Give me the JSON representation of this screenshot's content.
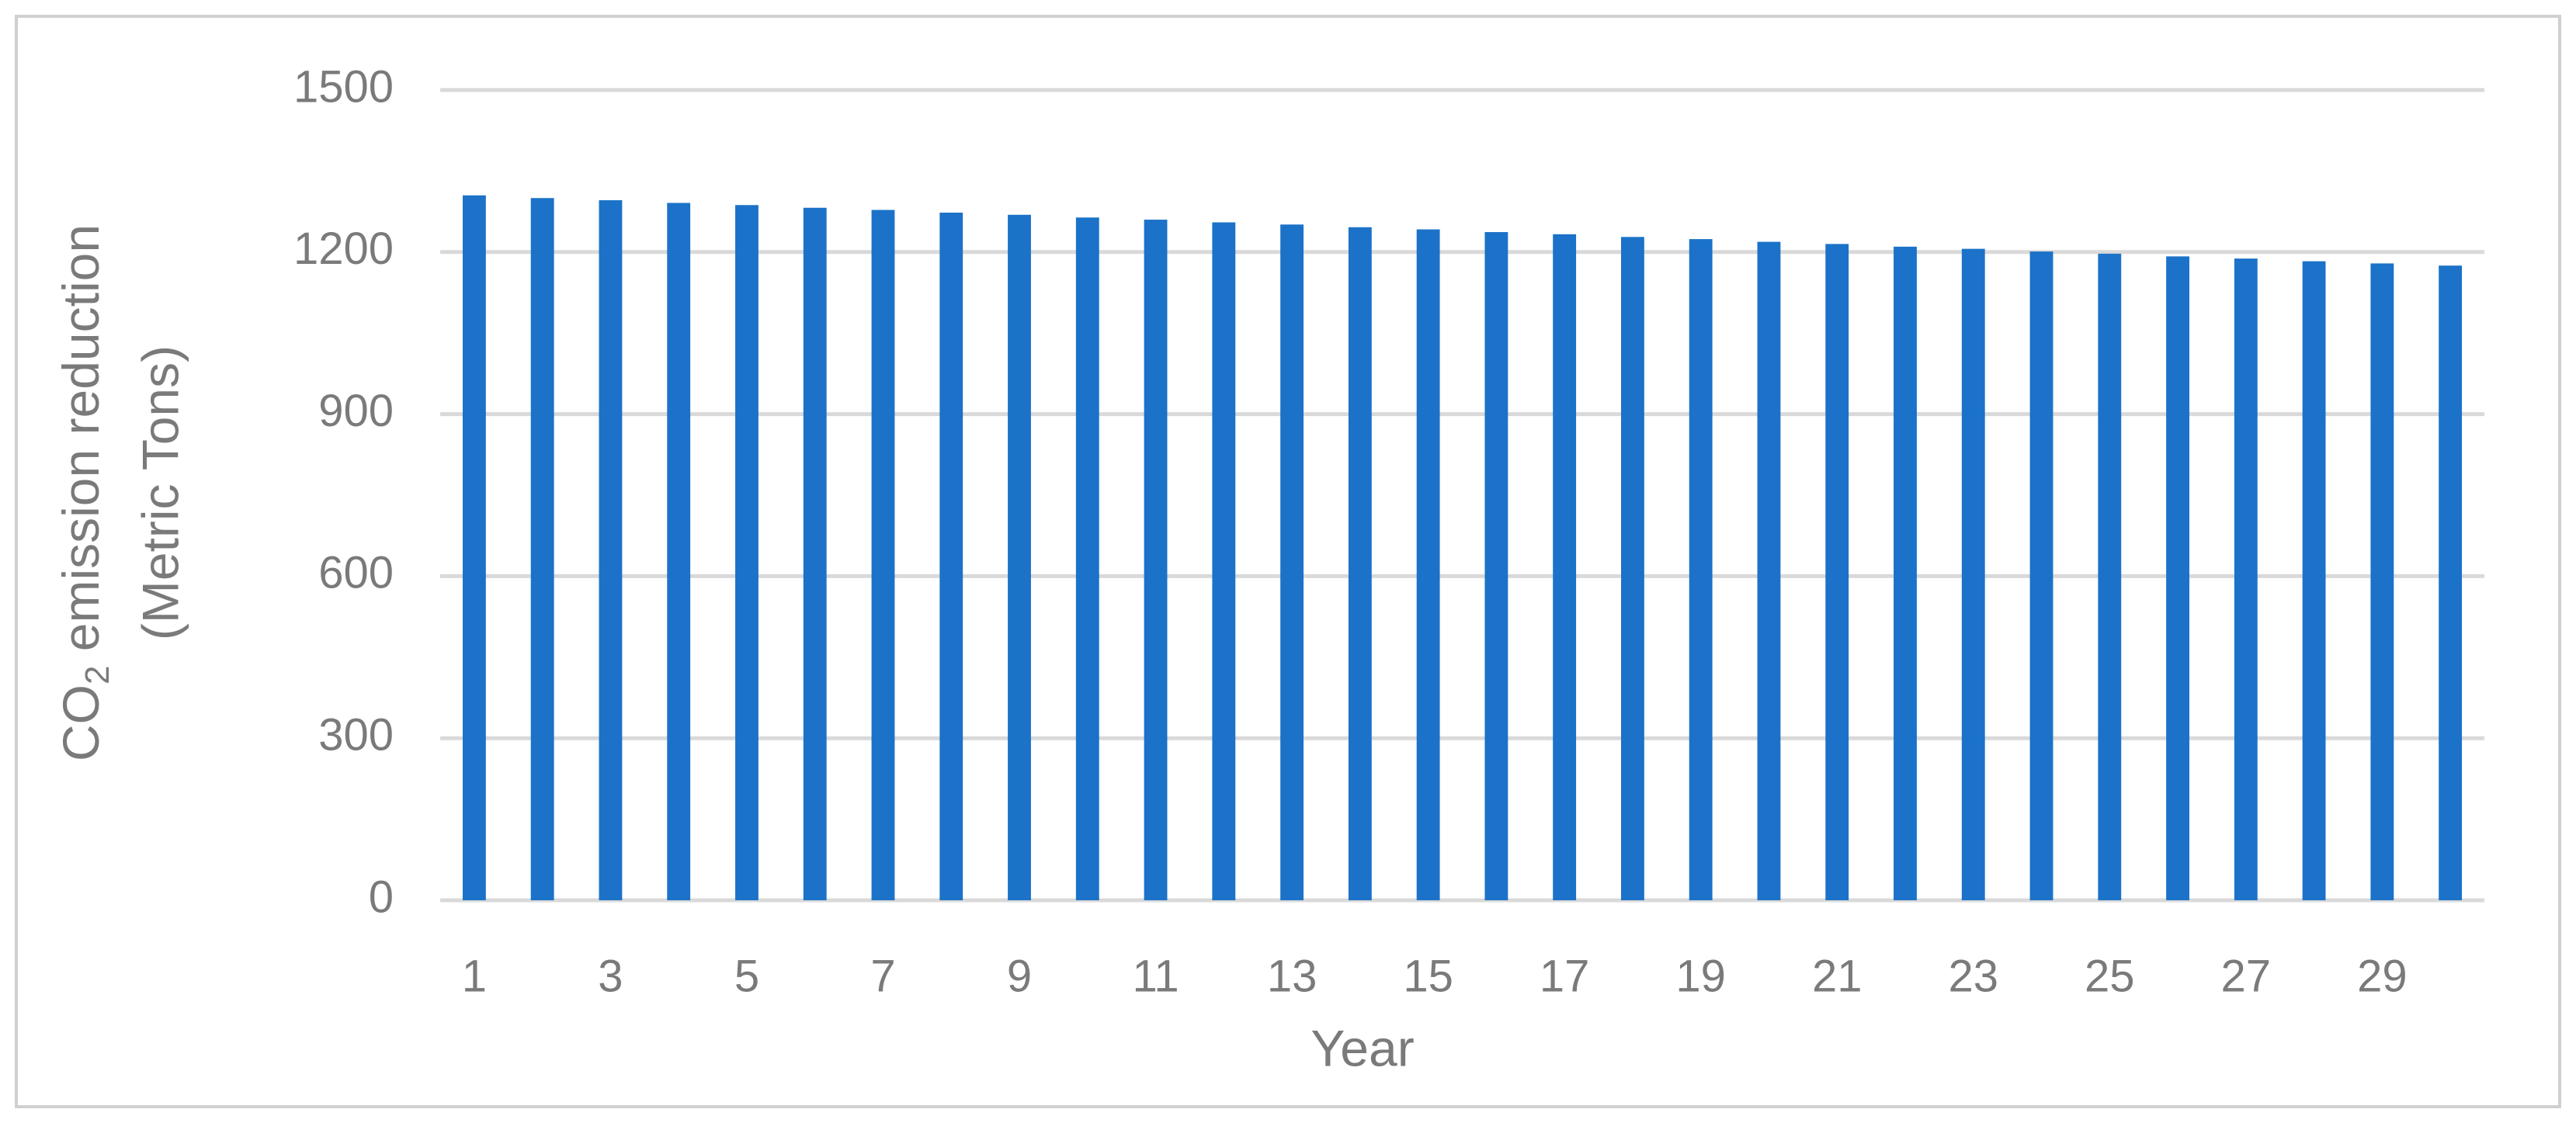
{
  "chart_data": {
    "type": "bar",
    "categories": [
      "1",
      null,
      "3",
      null,
      "5",
      null,
      "7",
      null,
      "9",
      null,
      "11",
      null,
      "13",
      null,
      "15",
      null,
      "17",
      null,
      "19",
      null,
      "21",
      null,
      "23",
      null,
      "25",
      null,
      "27",
      null,
      "29",
      null
    ],
    "values": [
      1305,
      1300,
      1296,
      1291,
      1287,
      1282,
      1278,
      1273,
      1269,
      1264,
      1260,
      1255,
      1251,
      1246,
      1242,
      1237,
      1233,
      1228,
      1224,
      1219,
      1215,
      1210,
      1206,
      1201,
      1197,
      1192,
      1188,
      1183,
      1179,
      1175
    ],
    "color": "#1b72c8",
    "ylim": [
      0,
      1500
    ],
    "yticks": [
      0,
      300,
      600,
      900,
      1200,
      1500
    ],
    "grid": true,
    "x_label": "Year",
    "y_label": {
      "line1": [
        "CO",
        "2",
        " emission reduction"
      ],
      "line2": "(Metric Tons)"
    }
  }
}
